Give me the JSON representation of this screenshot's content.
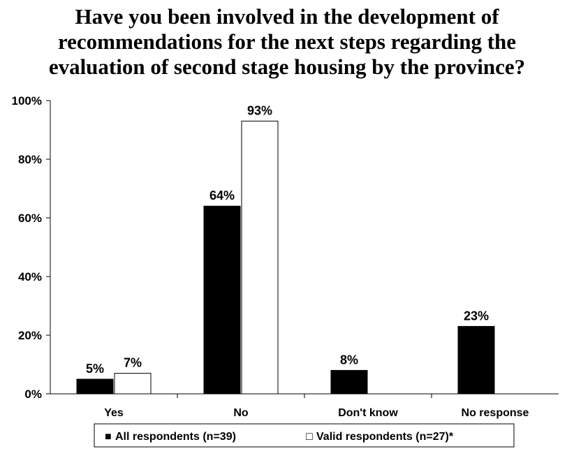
{
  "chart_data": {
    "type": "bar",
    "title": "Have you been involved in the development of\nrecommendations for the next steps regarding the\nevaluation of second stage housing by the province?",
    "categories": [
      "Yes",
      "No",
      "Don't know",
      "No response"
    ],
    "series": [
      {
        "name": "All respondents (n=39)",
        "values": [
          5,
          64,
          8,
          23
        ],
        "labels": [
          "5%",
          "64%",
          "8%",
          "23%"
        ],
        "color": "#000000"
      },
      {
        "name": "Valid respondents (n=27)*",
        "values": [
          7,
          93,
          null,
          null
        ],
        "labels": [
          "7%",
          "93%",
          "",
          ""
        ],
        "color": "#ffffff"
      }
    ],
    "ylim": [
      0,
      100
    ],
    "yticks": [
      0,
      20,
      40,
      60,
      80,
      100
    ],
    "ytick_labels": [
      "0%",
      "20%",
      "40%",
      "60%",
      "80%",
      "100%"
    ],
    "legend_position": "bottom",
    "legend_markers": [
      "■",
      "□"
    ],
    "grid": false
  }
}
